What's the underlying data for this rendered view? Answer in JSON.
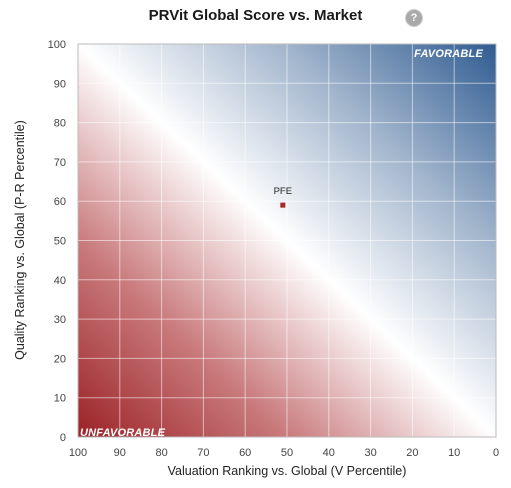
{
  "chart_data": {
    "type": "scatter",
    "title": "PRVit Global Score vs. Market",
    "xlabel": "Valuation Ranking vs. Global (V Percentile)",
    "ylabel": "Quality Ranking vs. Global (P-R Percentile)",
    "xlim": [
      100,
      0
    ],
    "ylim": [
      0,
      100
    ],
    "x_reversed": true,
    "xticks": [
      "100",
      "90",
      "80",
      "70",
      "60",
      "50",
      "40",
      "30",
      "20",
      "10",
      "0"
    ],
    "yticks": [
      "0",
      "10",
      "20",
      "30",
      "40",
      "50",
      "60",
      "70",
      "80",
      "90",
      "100"
    ],
    "grid": true,
    "corner_labels": {
      "top_right": "FAVORABLE",
      "bottom_left": "UNFAVORABLE"
    },
    "points": [
      {
        "label": "PFE",
        "x": 51,
        "y": 59
      }
    ],
    "colors": {
      "favorable": "#2f5b91",
      "neutral": "#ffffff",
      "unfavorable": "#9b2226",
      "point": "#a52a2a"
    }
  },
  "help_icon": {
    "name": "help-icon",
    "glyph": "?"
  }
}
